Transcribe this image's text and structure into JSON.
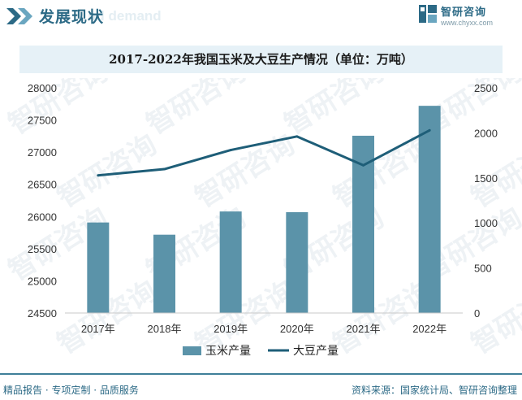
{
  "header": {
    "title": "发展现状",
    "ghost_text": "nd demand",
    "brand_name": "智研咨询",
    "brand_url": "www.chyxx.com"
  },
  "chart_data": {
    "type": "bar",
    "title": "2017-2022年我国玉米及大豆生产情况（单位：万吨）",
    "categories": [
      "2017年",
      "2018年",
      "2019年",
      "2020年",
      "2021年",
      "2022年"
    ],
    "series": [
      {
        "name": "玉米产量",
        "type": "bar",
        "axis": "left",
        "values": [
          25907,
          25717,
          26078,
          26067,
          27255,
          27720
        ]
      },
      {
        "name": "大豆产量",
        "type": "line",
        "axis": "right",
        "values": [
          1528,
          1597,
          1809,
          1960,
          1640,
          2028
        ]
      }
    ],
    "y_left": {
      "min": 24500,
      "max": 28000,
      "ticks": [
        24500,
        25000,
        25500,
        26000,
        26500,
        27000,
        27500,
        28000
      ]
    },
    "y_right": {
      "min": 0,
      "max": 2500,
      "ticks": [
        0,
        500,
        1000,
        1500,
        2000,
        2500
      ]
    },
    "grid": false,
    "legend_position": "bottom",
    "colors": {
      "bar": "#5b93a9",
      "line": "#1e5e78"
    }
  },
  "footer": {
    "left": "精品报告 · 专项定制 · 品质服务",
    "right": "资料来源：国家统计局、智研咨询整理"
  }
}
